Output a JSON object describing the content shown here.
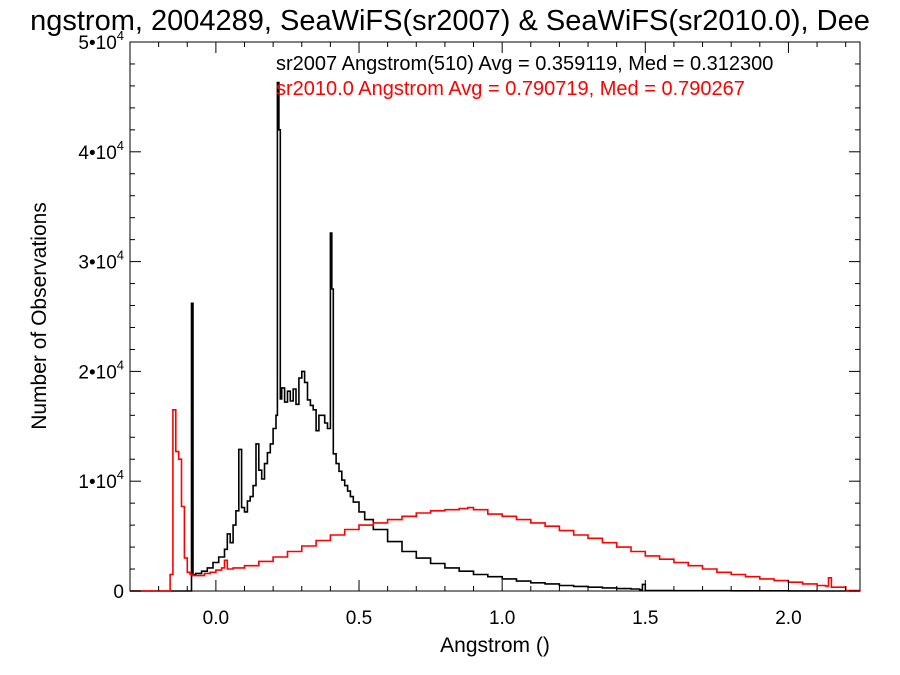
{
  "chart_data": {
    "type": "line",
    "title": "ngstrom, 2004289, SeaWiFS(sr2007) & SeaWiFS(sr2010.0), Dee",
    "xlabel": "Angstrom ()",
    "ylabel": "Number of Observations",
    "xlim": [
      -0.3,
      2.25
    ],
    "ylim": [
      0,
      50000
    ],
    "grid": false,
    "x_ticks": [
      {
        "value": 0.0,
        "label": "0.0"
      },
      {
        "value": 0.5,
        "label": "0.5"
      },
      {
        "value": 1.0,
        "label": "1.0"
      },
      {
        "value": 1.5,
        "label": "1.5"
      },
      {
        "value": 2.0,
        "label": "2.0"
      }
    ],
    "y_ticks": [
      {
        "value": 0,
        "label": "0"
      },
      {
        "value": 10000,
        "label": "1•10",
        "exp": "4"
      },
      {
        "value": 20000,
        "label": "2•10",
        "exp": "4"
      },
      {
        "value": 30000,
        "label": "3•10",
        "exp": "4"
      },
      {
        "value": 40000,
        "label": "4•10",
        "exp": "4"
      },
      {
        "value": 50000,
        "label": "5•10",
        "exp": "4"
      }
    ],
    "annotations": [
      {
        "text": "sr2007 Angstrom(510) Avg = 0.359119, Med = 0.312300",
        "color": "#000000"
      },
      {
        "text": "sr2010.0 Angstrom Avg = 0.790719, Med = 0.790267",
        "color": "#ff0000"
      }
    ],
    "series": [
      {
        "color": "#000000",
        "points": [
          [
            -0.3,
            0
          ],
          [
            -0.09,
            0
          ],
          [
            -0.085,
            26200
          ],
          [
            -0.08,
            1500
          ],
          [
            -0.07,
            1600
          ],
          [
            -0.05,
            1800
          ],
          [
            -0.03,
            2100
          ],
          [
            -0.01,
            2600
          ],
          [
            0.01,
            3100
          ],
          [
            0.03,
            3800
          ],
          [
            0.04,
            5200
          ],
          [
            0.05,
            4400
          ],
          [
            0.06,
            6000
          ],
          [
            0.07,
            7300
          ],
          [
            0.08,
            12900
          ],
          [
            0.09,
            7600
          ],
          [
            0.1,
            7200
          ],
          [
            0.11,
            8200
          ],
          [
            0.12,
            8600
          ],
          [
            0.13,
            9600
          ],
          [
            0.14,
            13400
          ],
          [
            0.15,
            11000
          ],
          [
            0.16,
            10200
          ],
          [
            0.17,
            11600
          ],
          [
            0.18,
            12600
          ],
          [
            0.19,
            13400
          ],
          [
            0.2,
            14800
          ],
          [
            0.21,
            16000
          ],
          [
            0.215,
            46300
          ],
          [
            0.22,
            42000
          ],
          [
            0.225,
            17500
          ],
          [
            0.23,
            18500
          ],
          [
            0.24,
            17200
          ],
          [
            0.25,
            18200
          ],
          [
            0.26,
            17300
          ],
          [
            0.27,
            18400
          ],
          [
            0.28,
            17000
          ],
          [
            0.29,
            19400
          ],
          [
            0.3,
            20000
          ],
          [
            0.31,
            19000
          ],
          [
            0.32,
            17400
          ],
          [
            0.33,
            16900
          ],
          [
            0.34,
            16500
          ],
          [
            0.35,
            14600
          ],
          [
            0.36,
            16000
          ],
          [
            0.37,
            16000
          ],
          [
            0.38,
            15300
          ],
          [
            0.39,
            14800
          ],
          [
            0.4,
            32600
          ],
          [
            0.405,
            27500
          ],
          [
            0.41,
            12500
          ],
          [
            0.42,
            11600
          ],
          [
            0.43,
            10900
          ],
          [
            0.44,
            10100
          ],
          [
            0.45,
            9600
          ],
          [
            0.46,
            9100
          ],
          [
            0.47,
            8600
          ],
          [
            0.48,
            8100
          ],
          [
            0.5,
            7200
          ],
          [
            0.52,
            6500
          ],
          [
            0.55,
            5600
          ],
          [
            0.6,
            4500
          ],
          [
            0.65,
            3600
          ],
          [
            0.7,
            3000
          ],
          [
            0.75,
            2500
          ],
          [
            0.8,
            2100
          ],
          [
            0.85,
            1800
          ],
          [
            0.9,
            1500
          ],
          [
            0.95,
            1300
          ],
          [
            1.0,
            1100
          ],
          [
            1.05,
            900
          ],
          [
            1.1,
            750
          ],
          [
            1.15,
            650
          ],
          [
            1.2,
            500
          ],
          [
            1.25,
            420
          ],
          [
            1.3,
            350
          ],
          [
            1.35,
            280
          ],
          [
            1.4,
            220
          ],
          [
            1.45,
            180
          ],
          [
            1.48,
            100
          ],
          [
            1.49,
            600
          ],
          [
            1.5,
            50
          ],
          [
            1.6,
            30
          ],
          [
            1.8,
            20
          ],
          [
            2.0,
            10
          ],
          [
            2.1,
            0
          ],
          [
            2.25,
            0
          ]
        ]
      },
      {
        "color": "#ff0000",
        "points": [
          [
            -0.3,
            0
          ],
          [
            -0.17,
            0
          ],
          [
            -0.16,
            1500
          ],
          [
            -0.15,
            16500
          ],
          [
            -0.14,
            12700
          ],
          [
            -0.13,
            12000
          ],
          [
            -0.12,
            7700
          ],
          [
            -0.11,
            3000
          ],
          [
            -0.1,
            1700
          ],
          [
            -0.09,
            1500
          ],
          [
            -0.08,
            1400
          ],
          [
            -0.06,
            1400
          ],
          [
            -0.04,
            1600
          ],
          [
            -0.02,
            1700
          ],
          [
            0.0,
            1900
          ],
          [
            0.02,
            2100
          ],
          [
            0.03,
            2800
          ],
          [
            0.04,
            2000
          ],
          [
            0.06,
            2100
          ],
          [
            0.1,
            2300
          ],
          [
            0.15,
            2700
          ],
          [
            0.2,
            3100
          ],
          [
            0.25,
            3600
          ],
          [
            0.3,
            4100
          ],
          [
            0.35,
            4600
          ],
          [
            0.4,
            5100
          ],
          [
            0.45,
            5600
          ],
          [
            0.5,
            6000
          ],
          [
            0.55,
            6200
          ],
          [
            0.6,
            6500
          ],
          [
            0.65,
            6800
          ],
          [
            0.7,
            7100
          ],
          [
            0.75,
            7300
          ],
          [
            0.8,
            7400
          ],
          [
            0.85,
            7500
          ],
          [
            0.88,
            7600
          ],
          [
            0.9,
            7400
          ],
          [
            0.95,
            7000
          ],
          [
            1.0,
            6800
          ],
          [
            1.05,
            6500
          ],
          [
            1.1,
            6200
          ],
          [
            1.15,
            5900
          ],
          [
            1.2,
            5500
          ],
          [
            1.25,
            5100
          ],
          [
            1.3,
            4800
          ],
          [
            1.35,
            4400
          ],
          [
            1.4,
            4000
          ],
          [
            1.45,
            3600
          ],
          [
            1.5,
            3200
          ],
          [
            1.55,
            2900
          ],
          [
            1.6,
            2600
          ],
          [
            1.65,
            2300
          ],
          [
            1.7,
            2000
          ],
          [
            1.75,
            1700
          ],
          [
            1.8,
            1500
          ],
          [
            1.85,
            1300
          ],
          [
            1.9,
            1100
          ],
          [
            1.95,
            950
          ],
          [
            2.0,
            800
          ],
          [
            2.05,
            650
          ],
          [
            2.1,
            500
          ],
          [
            2.13,
            450
          ],
          [
            2.14,
            1200
          ],
          [
            2.15,
            350
          ],
          [
            2.2,
            50
          ],
          [
            2.25,
            0
          ]
        ]
      }
    ]
  }
}
